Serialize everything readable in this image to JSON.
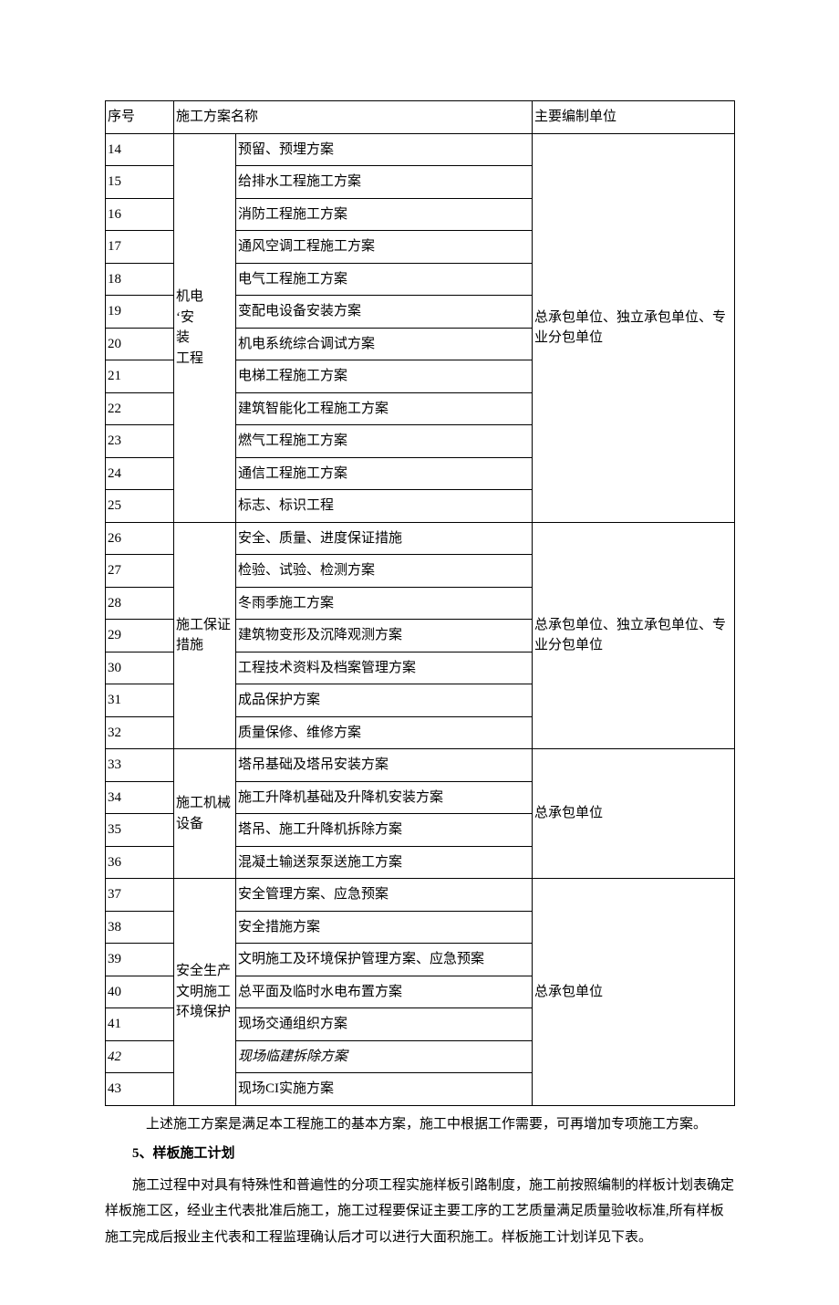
{
  "table": {
    "headers": {
      "seq": "序号",
      "name": "施工方案名称",
      "unit": "主要编制单位"
    },
    "groups": [
      {
        "category": "机电\n      ‘安\n装\n      工程",
        "unit": "总承包单位、独立承包单位、专业分包单位",
        "rows": [
          {
            "seq": "14",
            "name": "预留、预埋方案"
          },
          {
            "seq": "15",
            "name": "给排水工程施工方案"
          },
          {
            "seq": "16",
            "name": "消防工程施工方案"
          },
          {
            "seq": "17",
            "name": "通风空调工程施工方案"
          },
          {
            "seq": "18",
            "name": "电气工程施工方案"
          },
          {
            "seq": "19",
            "name": "变配电设备安装方案"
          },
          {
            "seq": "20",
            "name": "机电系统综合调试方案"
          },
          {
            "seq": "21",
            "name": "电梯工程施工方案"
          },
          {
            "seq": "22",
            "name": "建筑智能化工程施工方案"
          },
          {
            "seq": "23",
            "name": "燃气工程施工方案"
          },
          {
            "seq": "24",
            "name": "通信工程施工方案"
          },
          {
            "seq": "25",
            "name": "标志、标识工程"
          }
        ]
      },
      {
        "category": "施工保证措施",
        "unit": "总承包单位、独立承包单位、专业分包单位",
        "rows": [
          {
            "seq": "26",
            "name": "安全、质量、进度保证措施"
          },
          {
            "seq": "27",
            "name": "检验、试验、检测方案"
          },
          {
            "seq": "28",
            "name": "冬雨季施工方案"
          },
          {
            "seq": "29",
            "name": "建筑物变形及沉降观测方案"
          },
          {
            "seq": "30",
            "name": "工程技术资料及档案管理方案"
          },
          {
            "seq": "31",
            "name": "成品保护方案"
          },
          {
            "seq": "32",
            "name": "质量保修、维修方案"
          }
        ]
      },
      {
        "category": "施工机械设备",
        "unit": "总承包单位",
        "rows": [
          {
            "seq": "33",
            "name": "塔吊基础及塔吊安装方案"
          },
          {
            "seq": "34",
            "name": "施工升降机基础及升降机安装方案"
          },
          {
            "seq": "35",
            "name": "塔吊、施工升降机拆除方案"
          },
          {
            "seq": "36",
            "name": "混凝土输送泵泵送施工方案"
          }
        ]
      },
      {
        "category": "安全生产文明施工环境保护",
        "unit": "总承包单位",
        "rows": [
          {
            "seq": "37",
            "name": "安全管理方案、应急预案"
          },
          {
            "seq": "38",
            "name": "安全措施方案"
          },
          {
            "seq": "39",
            "name": "文明施工及环境保护管理方案、应急预案"
          },
          {
            "seq": "40",
            "name": "总平面及临时水电布置方案"
          },
          {
            "seq": "41",
            "name": "现场交通组织方案"
          },
          {
            "seq": "42",
            "name": "现场临建拆除方案",
            "italic": true
          },
          {
            "seq": "43",
            "name": "现场CI实施方案"
          }
        ]
      }
    ]
  },
  "paragraphs": {
    "p1": "上述施工方案是满足本工程施工的基本方案，施工中根据工作需要，可再增加专项施工方案。",
    "heading": "5、样板施工计划",
    "p2": "施工过程中对具有特殊性和普遍性的分项工程实施样板引路制度，施工前按照编制的样板计划表确定样板施工区，经业主代表批准后施工，施工过程要保证主要工序的工艺质量满足质量验收标准,所有样板施工完成后报业主代表和工程监理确认后才可以进行大面积施工。样板施工计划详见下表。"
  }
}
